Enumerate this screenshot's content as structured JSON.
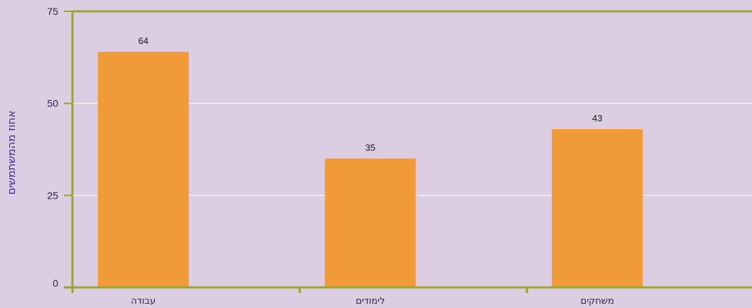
{
  "chart_data": {
    "type": "bar",
    "categories": [
      "עבודה",
      "לימודים",
      "משחקים"
    ],
    "values": [
      64,
      35,
      43
    ],
    "title": "",
    "xlabel": "",
    "ylabel": "אחוז מהמשתמשים",
    "ylim": [
      0,
      75
    ],
    "yticks": [
      0,
      25,
      50,
      75
    ],
    "grid": true,
    "legend": "none",
    "colors": {
      "bar": "#f09a38",
      "axis": "#9aa62a",
      "grid": "#ffffff",
      "background": "#dccde2",
      "text": "#2f1f4a",
      "ylabel": "#3b2b8a"
    }
  }
}
